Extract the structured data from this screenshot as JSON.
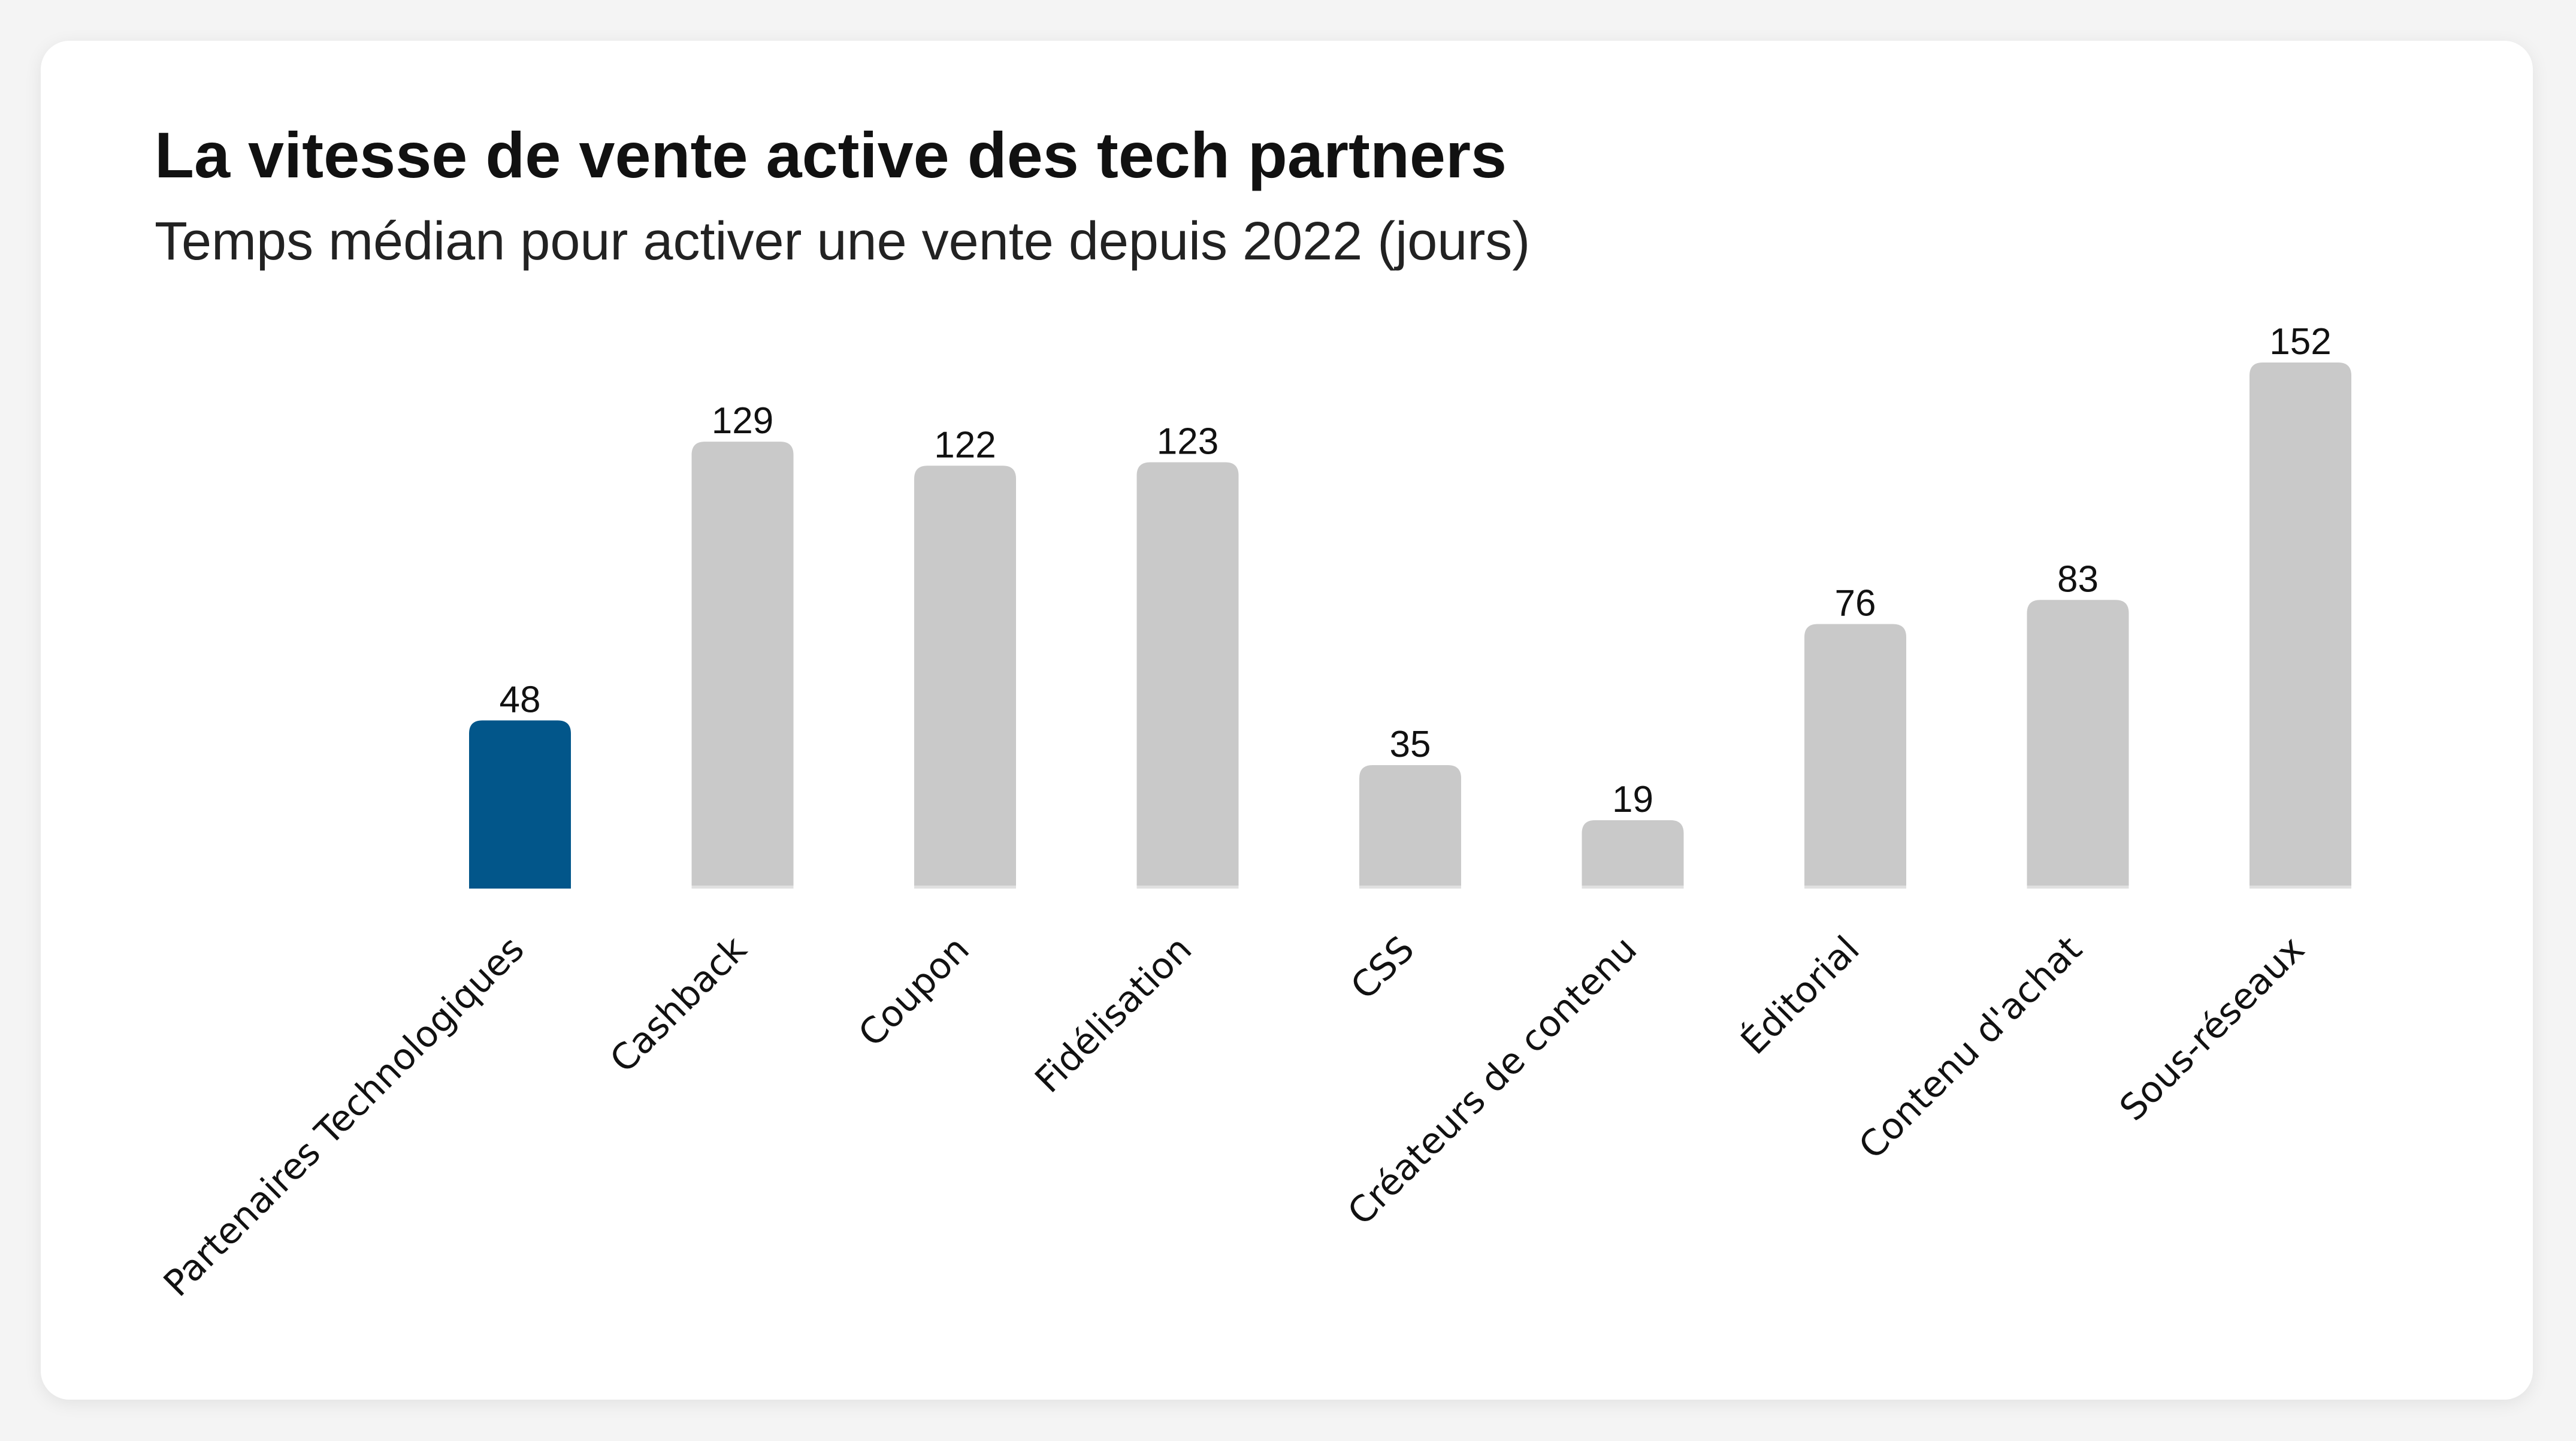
{
  "header": {
    "title": "La vitesse de vente active des tech partners",
    "subtitle": "Temps médian pour activer une vente depuis 2022 (jours)"
  },
  "colors": {
    "highlight": "#02568a",
    "default": "#c9c9c9",
    "baseline": "#e0e0e0"
  },
  "chart_data": {
    "type": "bar",
    "title": "La vitesse de vente active des tech partners",
    "subtitle": "Temps médian pour activer une vente depuis 2022 (jours)",
    "xlabel": "",
    "ylabel": "",
    "categories": [
      "Partenaires Technologiques",
      "Cashback",
      "Coupon",
      "Fidélisation",
      "CSS",
      "Créateurs de contenu",
      "Éditorial",
      "Contenu d'achat",
      "Sous-réseaux"
    ],
    "values": [
      48,
      129,
      122,
      123,
      35,
      19,
      76,
      83,
      152
    ],
    "highlight_index": 0,
    "ylim": [
      0,
      152
    ],
    "grid": false,
    "data_labels": true
  }
}
